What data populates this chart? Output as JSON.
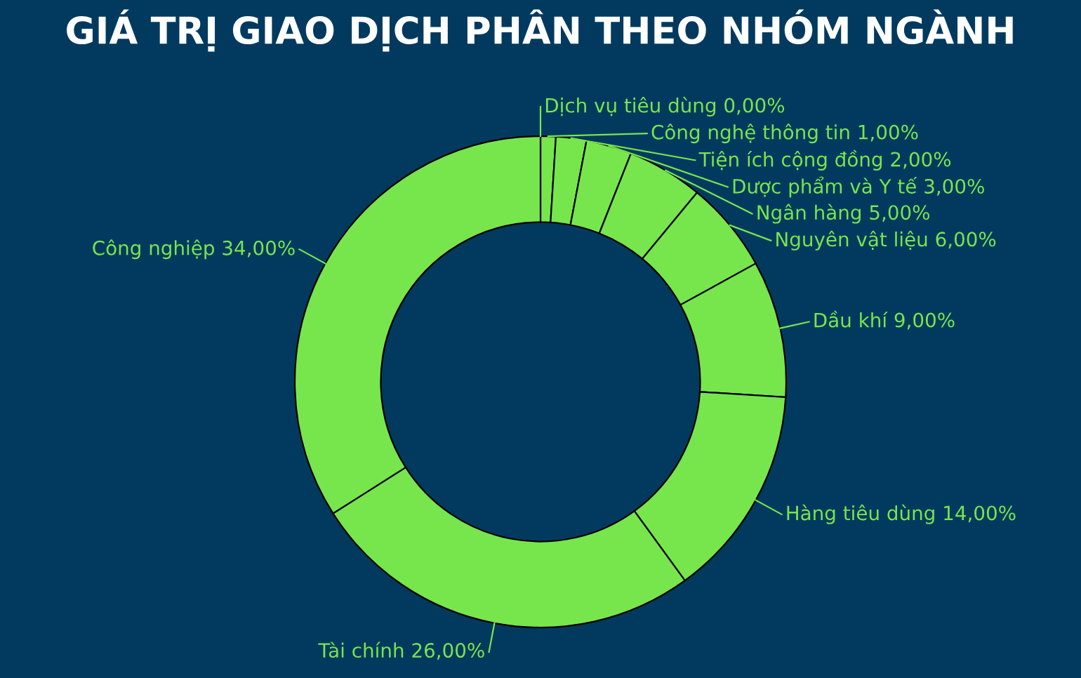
{
  "chart_data": {
    "type": "donut",
    "title": "GIÁ TRỊ GIAO DỊCH PHÂN THEO NHÓM NGÀNH",
    "categories": [
      "Dịch vụ tiêu dùng",
      "Công nghệ thông tin",
      "Tiện ích cộng đồng",
      "Dược phẩm và Y tế",
      "Ngân hàng",
      "Nguyên vật liệu",
      "Dầu khí",
      "Hàng tiêu dùng",
      "Tài chính",
      "Công nghiệp"
    ],
    "values": [
      0,
      1,
      2,
      3,
      5,
      6,
      9,
      14,
      26,
      34
    ],
    "value_labels": [
      "0,00%",
      "1,00%",
      "2,00%",
      "3,00%",
      "5,00%",
      "6,00%",
      "9,00%",
      "14,00%",
      "26,00%",
      "34,00%"
    ],
    "colors": [
      "#77e64d",
      "#77e64d",
      "#77e64d",
      "#77e64d",
      "#77e64d",
      "#77e64d",
      "#77e64d",
      "#77e64d",
      "#77e64d",
      "#77e64d"
    ],
    "legend": false
  }
}
